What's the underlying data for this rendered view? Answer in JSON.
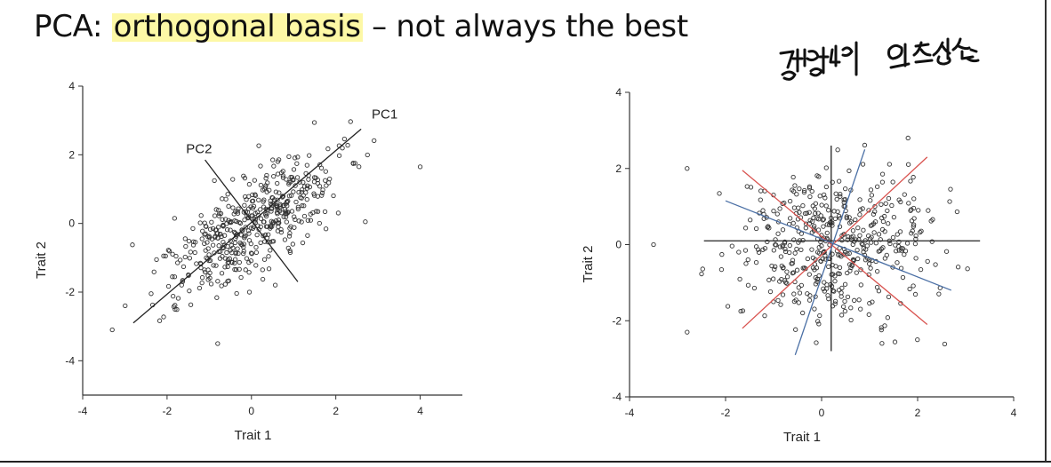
{
  "slide": {
    "title_prefix": "PCA: ",
    "title_highlight": "orthogonal basis",
    "title_suffix": " – not always the best",
    "handwritten_note": "경향성이 없을수도",
    "colors": {
      "highlight": "#fdf8a6",
      "points": "#333333",
      "pc_lines": "#222222",
      "red_axes": "#d9534f",
      "blue_axes": "#4a6fa5"
    }
  },
  "chart_data": [
    {
      "type": "scatter",
      "title": "",
      "xlabel": "Trait 1",
      "ylabel": "Trait 2",
      "xlim": [
        -4,
        5
      ],
      "ylim": [
        -5,
        4
      ],
      "xticks": [
        "-4",
        "-2",
        "0",
        "2",
        "4"
      ],
      "yticks": [
        "4",
        "2",
        "0",
        "-2",
        "-4"
      ],
      "annotations": [
        "PC1",
        "PC2"
      ],
      "lines": [
        {
          "label": "PC1",
          "x": [
            -2.8,
            2.6
          ],
          "y": [
            -2.9,
            2.75
          ]
        },
        {
          "label": "PC2",
          "x": [
            -1.1,
            1.1
          ],
          "y": [
            1.85,
            -1.7
          ]
        }
      ],
      "distribution": {
        "center": [
          0,
          0
        ],
        "sd_major": 1.35,
        "sd_minor": 0.55,
        "angle_deg": 46,
        "n": 480
      },
      "outliers": [
        [
          -3.3,
          -3.1
        ],
        [
          4.0,
          1.65
        ],
        [
          2.7,
          0.05
        ],
        [
          -0.8,
          -3.5
        ]
      ]
    },
    {
      "type": "scatter",
      "title": "",
      "xlabel": "Trait 1",
      "ylabel": "Trait 2",
      "xlim": [
        -4,
        4
      ],
      "ylim": [
        -4,
        4
      ],
      "xticks": [
        "-4",
        "-2",
        "0",
        "2",
        "4"
      ],
      "yticks": [
        "4",
        "2",
        "0",
        "-2",
        "-4"
      ],
      "lines": [
        {
          "color": "black",
          "x": [
            -2.45,
            3.3
          ],
          "y": [
            0.1,
            0.1
          ]
        },
        {
          "color": "black",
          "x": [
            0.2,
            0.2
          ],
          "y": [
            2.6,
            -2.8
          ]
        },
        {
          "color": "red",
          "x": [
            -1.65,
            2.2
          ],
          "y": [
            1.95,
            -2.1
          ]
        },
        {
          "color": "red",
          "x": [
            -1.65,
            2.2
          ],
          "y": [
            -2.2,
            2.3
          ]
        },
        {
          "color": "blue",
          "x": [
            -2.0,
            2.7
          ],
          "y": [
            1.15,
            -1.2
          ]
        },
        {
          "color": "blue",
          "x": [
            -0.55,
            0.9
          ],
          "y": [
            -2.9,
            2.5
          ]
        }
      ],
      "distribution": {
        "center": [
          0.2,
          0
        ],
        "sd_major": 1.0,
        "sd_minor": 1.0,
        "angle_deg": 0,
        "n": 480
      },
      "outliers": [
        [
          -3.5,
          0.0
        ],
        [
          -2.8,
          -2.3
        ],
        [
          -2.8,
          2.0
        ],
        [
          1.8,
          2.8
        ]
      ]
    }
  ]
}
